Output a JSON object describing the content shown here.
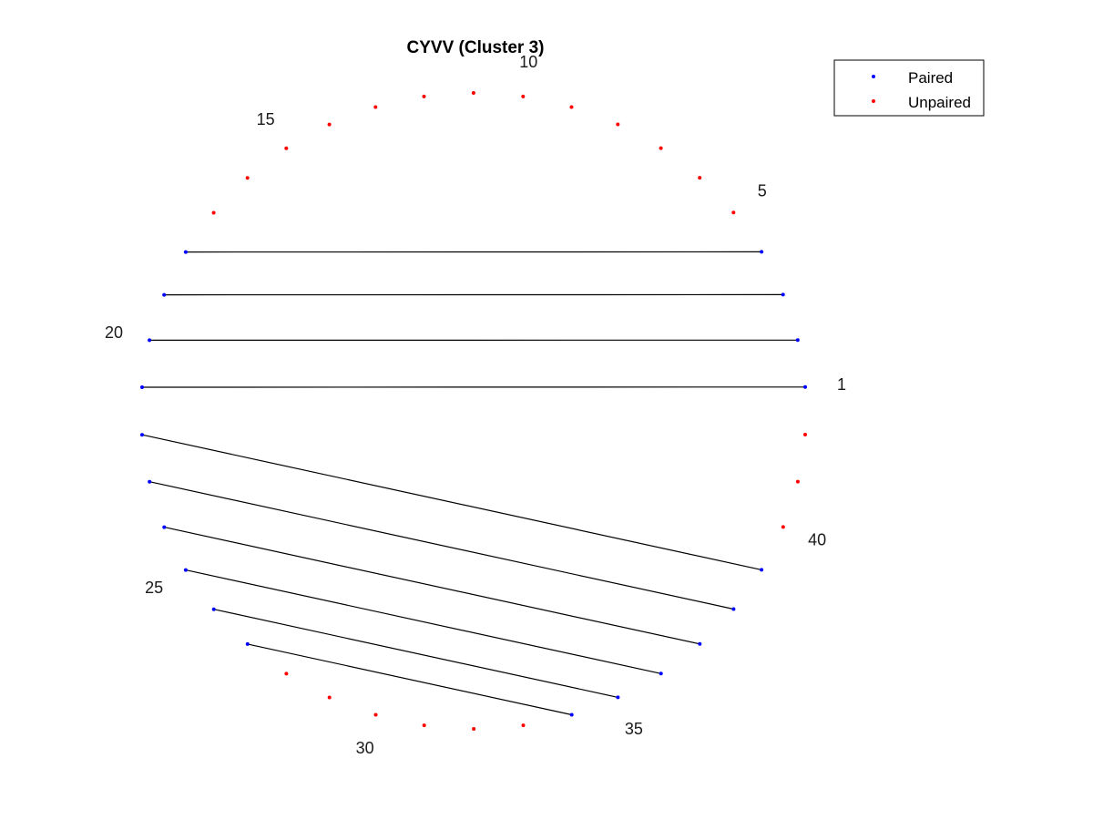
{
  "chart_data": {
    "type": "arc-diagram",
    "title": "CYVV (Cluster 3)",
    "n_positions": 42,
    "numbered_positions": [
      1,
      5,
      10,
      15,
      20,
      25,
      30,
      35,
      40
    ],
    "number_labels": [
      "1",
      "5",
      "10",
      "15",
      "20",
      "25",
      "30",
      "35",
      "40"
    ],
    "pairs": [
      [
        1,
        21
      ],
      [
        2,
        20
      ],
      [
        3,
        19
      ],
      [
        4,
        18
      ],
      [
        22,
        39
      ],
      [
        23,
        38
      ],
      [
        24,
        37
      ],
      [
        25,
        36
      ],
      [
        26,
        35
      ],
      [
        27,
        34
      ]
    ],
    "paired_positions": [
      1,
      2,
      3,
      4,
      18,
      19,
      20,
      21,
      22,
      23,
      24,
      25,
      26,
      27,
      34,
      35,
      36,
      37,
      38,
      39
    ],
    "unpaired_positions": [
      5,
      6,
      7,
      8,
      9,
      10,
      11,
      12,
      13,
      14,
      15,
      16,
      17,
      28,
      29,
      30,
      31,
      32,
      33,
      40,
      41,
      42
    ],
    "legend": {
      "location": "top-right",
      "entries": [
        {
          "label": "Paired",
          "color": "#0000ff"
        },
        {
          "label": "Unpaired",
          "color": "#ff0000"
        }
      ]
    },
    "colors": {
      "paired": "#0000ff",
      "unpaired": "#ff0000",
      "line": "#000000"
    }
  }
}
